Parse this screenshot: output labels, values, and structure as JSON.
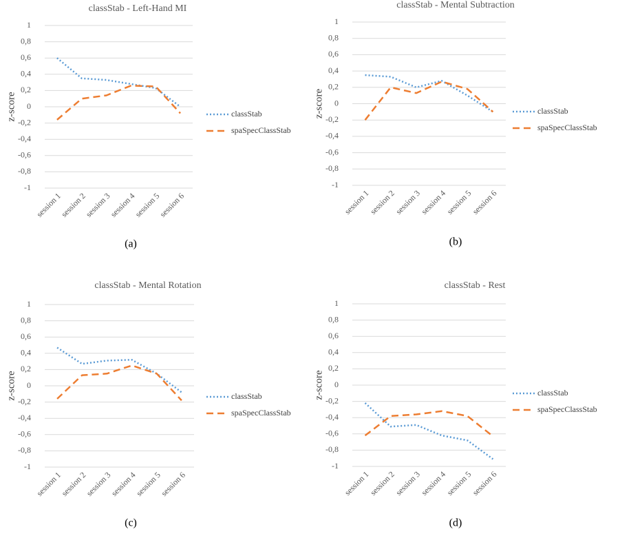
{
  "chart_data": [
    {
      "type": "line",
      "title": "classStab - Left-Hand MI",
      "ylabel": "z-score",
      "caption": "(a)",
      "categories": [
        "session 1",
        "session 2",
        "session 3",
        "session 4",
        "session 5",
        "session 6"
      ],
      "series": [
        {
          "name": "classStab",
          "color": "#5b9bd5",
          "linestyle": "dotted",
          "values": [
            0.6,
            0.35,
            0.33,
            0.28,
            0.23,
            0.0
          ]
        },
        {
          "name": "spaSpecClassStab",
          "color": "#ed7d31",
          "linestyle": "dashed",
          "values": [
            -0.16,
            0.1,
            0.14,
            0.26,
            0.25,
            -0.08
          ]
        }
      ],
      "ylim": [
        -1,
        1
      ],
      "yticks": [
        1,
        {
          "value": 0.8,
          "label": "0,8"
        },
        {
          "value": 0.6,
          "label": "0,6"
        },
        {
          "value": 0.4,
          "label": "0,4"
        },
        {
          "value": 0.2,
          "label": "0,2"
        },
        0,
        {
          "value": -0.2,
          "label": "-0,2"
        },
        {
          "value": -0.4,
          "label": "-0,4"
        },
        {
          "value": -0.6,
          "label": "-0,6"
        },
        {
          "value": -0.8,
          "label": "-0,8"
        },
        -1
      ],
      "grid": true,
      "legend": "right"
    },
    {
      "type": "line",
      "title": "classStab - Mental Subtraction",
      "ylabel": "z-score",
      "caption": "(b)",
      "categories": [
        "session 1",
        "session 2",
        "session 3",
        "session 4",
        "session 5",
        "session 6"
      ],
      "series": [
        {
          "name": "classStab",
          "color": "#5b9bd5",
          "linestyle": "dotted",
          "values": [
            0.35,
            0.33,
            0.2,
            0.28,
            0.1,
            -0.1
          ]
        },
        {
          "name": "spaSpecClassStab",
          "color": "#ed7d31",
          "linestyle": "dashed",
          "values": [
            -0.2,
            0.2,
            0.13,
            0.27,
            0.18,
            -0.1
          ]
        }
      ],
      "ylim": [
        -1,
        1
      ],
      "yticks": [
        1,
        {
          "value": 0.8,
          "label": "0,8"
        },
        {
          "value": 0.6,
          "label": "0,6"
        },
        {
          "value": 0.4,
          "label": "0,4"
        },
        {
          "value": 0.2,
          "label": "0,2"
        },
        0,
        {
          "value": -0.2,
          "label": "-0,2"
        },
        {
          "value": -0.4,
          "label": "-0,4"
        },
        {
          "value": -0.6,
          "label": "-0,6"
        },
        {
          "value": -0.8,
          "label": "-0,8"
        },
        -1
      ],
      "grid": true,
      "legend": "right"
    },
    {
      "type": "line",
      "title": "classStab - Mental Rotation",
      "ylabel": "z-score",
      "caption": "(c)",
      "categories": [
        "session 1",
        "session 2",
        "session 3",
        "session 4",
        "session 5",
        "session 6"
      ],
      "series": [
        {
          "name": "classStab",
          "color": "#5b9bd5",
          "linestyle": "dotted",
          "values": [
            0.47,
            0.27,
            0.31,
            0.32,
            0.15,
            -0.08
          ]
        },
        {
          "name": "spaSpecClassStab",
          "color": "#ed7d31",
          "linestyle": "dashed",
          "values": [
            -0.16,
            0.13,
            0.15,
            0.25,
            0.15,
            -0.18
          ]
        }
      ],
      "ylim": [
        -1,
        1
      ],
      "yticks": [
        1,
        {
          "value": 0.8,
          "label": "0,8"
        },
        {
          "value": 0.6,
          "label": "0,6"
        },
        {
          "value": 0.4,
          "label": "0,4"
        },
        {
          "value": 0.2,
          "label": "0,2"
        },
        0,
        {
          "value": -0.2,
          "label": "-0,2"
        },
        {
          "value": -0.4,
          "label": "-0,4"
        },
        {
          "value": -0.6,
          "label": "-0,6"
        },
        {
          "value": -0.8,
          "label": "-0,8"
        },
        -1
      ],
      "grid": true,
      "legend": "right"
    },
    {
      "type": "line",
      "title": "classStab - Rest",
      "ylabel": "z-score",
      "caption": "(d)",
      "categories": [
        "session 1",
        "session 2",
        "session 3",
        "session 4",
        "session 5",
        "session 6"
      ],
      "series": [
        {
          "name": "classStab",
          "color": "#5b9bd5",
          "linestyle": "dotted",
          "values": [
            -0.22,
            -0.51,
            -0.49,
            -0.62,
            -0.68,
            -0.91
          ]
        },
        {
          "name": "spaSpecClassStab",
          "color": "#ed7d31",
          "linestyle": "dashed",
          "values": [
            -0.62,
            -0.38,
            -0.36,
            -0.32,
            -0.38,
            -0.63
          ]
        }
      ],
      "ylim": [
        -1,
        1
      ],
      "yticks": [
        1,
        {
          "value": 0.8,
          "label": "0,8"
        },
        {
          "value": 0.6,
          "label": "0,6"
        },
        {
          "value": 0.4,
          "label": "0,4"
        },
        {
          "value": 0.2,
          "label": "0,2"
        },
        0,
        {
          "value": -0.2,
          "label": "-0,2"
        },
        {
          "value": -0.4,
          "label": "-0,4"
        },
        {
          "value": -0.6,
          "label": "-0,6"
        },
        {
          "value": -0.8,
          "label": "-0,8"
        },
        -1
      ],
      "grid": true,
      "legend": "right"
    }
  ]
}
